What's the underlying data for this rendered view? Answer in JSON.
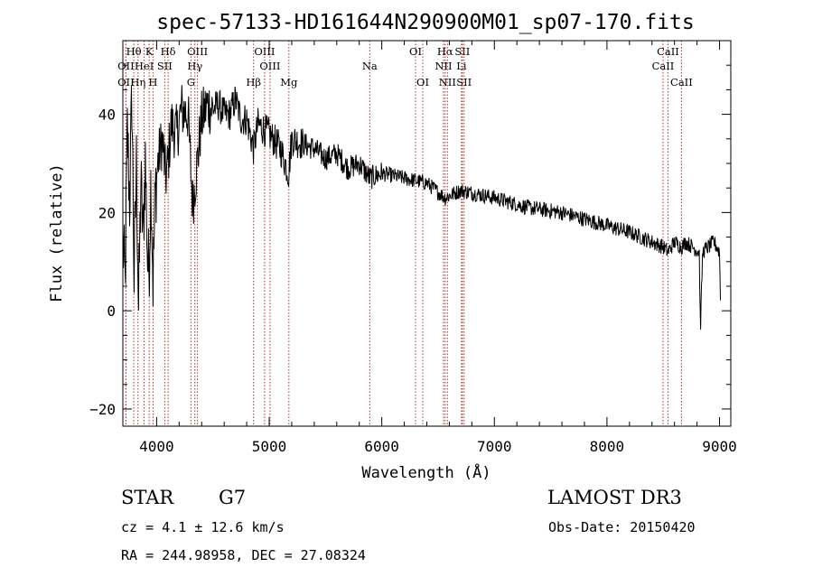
{
  "chart_data": {
    "type": "line",
    "title": "spec-57133-HD161644N290900M01_sp07-170.fits",
    "xlabel": "Wavelength (Å)",
    "ylabel": "Flux (relative)",
    "xlim": [
      3700,
      9100
    ],
    "ylim": [
      -23.5,
      55
    ],
    "xticks": [
      4000,
      5000,
      6000,
      7000,
      8000,
      9000
    ],
    "yticks": [
      -20,
      0,
      20,
      40
    ],
    "spectrum_anchors": [
      [
        3700,
        14
      ],
      [
        3720,
        5
      ],
      [
        3740,
        37
      ],
      [
        3760,
        22
      ],
      [
        3780,
        44
      ],
      [
        3800,
        6
      ],
      [
        3820,
        30
      ],
      [
        3840,
        0
      ],
      [
        3860,
        26
      ],
      [
        3880,
        15
      ],
      [
        3900,
        31
      ],
      [
        3920,
        10
      ],
      [
        3933,
        8
      ],
      [
        3950,
        28
      ],
      [
        3968,
        6
      ],
      [
        3990,
        25
      ],
      [
        4010,
        30
      ],
      [
        4050,
        35
      ],
      [
        4080,
        27
      ],
      [
        4101,
        30
      ],
      [
        4130,
        38
      ],
      [
        4180,
        36
      ],
      [
        4220,
        41
      ],
      [
        4280,
        40
      ],
      [
        4300,
        30
      ],
      [
        4320,
        22
      ],
      [
        4340,
        26
      ],
      [
        4360,
        30
      ],
      [
        4400,
        39
      ],
      [
        4450,
        42
      ],
      [
        4500,
        41
      ],
      [
        4550,
        42
      ],
      [
        4600,
        40
      ],
      [
        4650,
        40
      ],
      [
        4700,
        43
      ],
      [
        4750,
        39
      ],
      [
        4800,
        39
      ],
      [
        4861,
        33
      ],
      [
        4900,
        38
      ],
      [
        5000,
        36
      ],
      [
        5100,
        33
      ],
      [
        5172,
        28
      ],
      [
        5200,
        35
      ],
      [
        5300,
        34
      ],
      [
        5400,
        33
      ],
      [
        5500,
        31
      ],
      [
        5600,
        32
      ],
      [
        5700,
        29
      ],
      [
        5800,
        30
      ],
      [
        5893,
        27
      ],
      [
        6000,
        28
      ],
      [
        6200,
        27
      ],
      [
        6400,
        26
      ],
      [
        6563,
        23
      ],
      [
        6700,
        24.5
      ],
      [
        7000,
        23
      ],
      [
        7300,
        21
      ],
      [
        7600,
        20
      ],
      [
        7900,
        18
      ],
      [
        8200,
        16
      ],
      [
        8500,
        13
      ],
      [
        8542,
        12
      ],
      [
        8600,
        14
      ],
      [
        8662,
        13
      ],
      [
        8700,
        14
      ],
      [
        8820,
        12
      ],
      [
        8830,
        -4
      ],
      [
        8850,
        12
      ],
      [
        8950,
        14
      ],
      [
        9000,
        12
      ],
      [
        9010,
        0
      ]
    ],
    "lines": [
      {
        "label": "Hθ",
        "x": 3797,
        "row": 1
      },
      {
        "label": "OII",
        "x": 3727,
        "row": 2
      },
      {
        "label": "OII",
        "x": 3727,
        "row": 3
      },
      {
        "label": "Hη",
        "x": 3835,
        "row": 3
      },
      {
        "label": "HeI",
        "x": 3889,
        "row": 2
      },
      {
        "label": "K",
        "x": 3934,
        "row": 1
      },
      {
        "label": "H",
        "x": 3968,
        "row": 3
      },
      {
        "label": "SII",
        "x": 4072,
        "row": 2
      },
      {
        "label": "Hδ",
        "x": 4102,
        "row": 1
      },
      {
        "label": "OIII",
        "x": 4363,
        "row": 1
      },
      {
        "label": "Hγ",
        "x": 4340,
        "row": 2
      },
      {
        "label": "G",
        "x": 4305,
        "row": 3
      },
      {
        "label": "Hβ",
        "x": 4861,
        "row": 3
      },
      {
        "label": "OIII",
        "x": 4959,
        "row": 1
      },
      {
        "label": "OIII",
        "x": 5007,
        "row": 2
      },
      {
        "label": "Mg",
        "x": 5175,
        "row": 3
      },
      {
        "label": "Na",
        "x": 5893,
        "row": 2
      },
      {
        "label": "OI",
        "x": 6300,
        "row": 1
      },
      {
        "label": "OI",
        "x": 6364,
        "row": 3
      },
      {
        "label": "Hα",
        "x": 6563,
        "row": 1
      },
      {
        "label": "NII",
        "x": 6548,
        "row": 2
      },
      {
        "label": "NII",
        "x": 6583,
        "row": 3
      },
      {
        "label": "SII",
        "x": 6716,
        "row": 1
      },
      {
        "label": "Li",
        "x": 6708,
        "row": 2
      },
      {
        "label": "SII",
        "x": 6731,
        "row": 3
      },
      {
        "label": "CaII",
        "x": 8542,
        "row": 1
      },
      {
        "label": "CaII",
        "x": 8498,
        "row": 2
      },
      {
        "label": "CaII",
        "x": 8662,
        "row": 3
      }
    ]
  },
  "info": {
    "object_class": "STAR",
    "subclass": "G7",
    "survey": "LAMOST DR3",
    "cz": "cz = 4.1 ± 12.6 km/s",
    "obs_date": "Obs-Date: 20150420",
    "coords": "RA = 244.98958, DEC =  27.08324"
  }
}
